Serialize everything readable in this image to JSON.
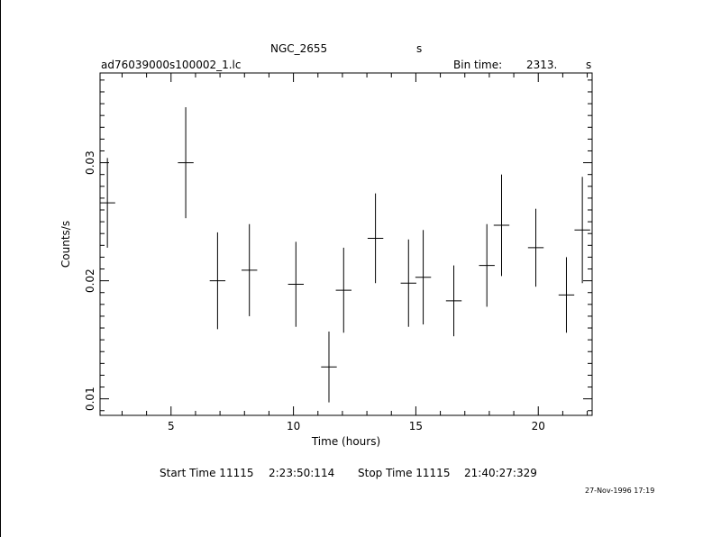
{
  "header": {
    "object": "NGC_2655",
    "object_unit": "s",
    "filename": "ad76039000s100002_1.lc",
    "bin_label": "Bin time:",
    "bin_value": "2313.",
    "bin_unit": "s"
  },
  "footer": {
    "start_label": "Start Time 11115",
    "start_value": "2:23:50:114",
    "stop_label": "Stop Time 11115",
    "stop_value": "21:40:27:329",
    "timestamp": "27-Nov-1996 17:19"
  },
  "chart_data": {
    "type": "scatter",
    "xlabel": "Time (hours)",
    "ylabel": "Counts/s",
    "xlim": [
      2.1,
      22.2
    ],
    "ylim": [
      0.0086,
      0.0376
    ],
    "x_ticks": [
      5,
      10,
      15,
      20
    ],
    "x_tick_labels": [
      "5",
      "10",
      "15",
      "20"
    ],
    "y_ticks": [
      0.01,
      0.02,
      0.03
    ],
    "y_tick_labels": [
      "0.01",
      "0.02",
      "0.03"
    ],
    "grid": false,
    "points": [
      {
        "x": 2.4,
        "y": 0.0266,
        "xerr": 0.32,
        "yerr": 0.0038
      },
      {
        "x": 5.6,
        "y": 0.03,
        "xerr": 0.32,
        "yerr": 0.0047
      },
      {
        "x": 6.9,
        "y": 0.02,
        "xerr": 0.32,
        "yerr": 0.0041
      },
      {
        "x": 8.2,
        "y": 0.0209,
        "xerr": 0.32,
        "yerr": 0.0039
      },
      {
        "x": 10.1,
        "y": 0.0197,
        "xerr": 0.32,
        "yerr": 0.0036
      },
      {
        "x": 11.45,
        "y": 0.0127,
        "xerr": 0.32,
        "yerr": 0.003
      },
      {
        "x": 12.05,
        "y": 0.0192,
        "xerr": 0.32,
        "yerr": 0.0036
      },
      {
        "x": 13.35,
        "y": 0.0236,
        "xerr": 0.32,
        "yerr": 0.0038
      },
      {
        "x": 14.7,
        "y": 0.0198,
        "xerr": 0.32,
        "yerr": 0.0037
      },
      {
        "x": 15.3,
        "y": 0.0203,
        "xerr": 0.32,
        "yerr": 0.004
      },
      {
        "x": 16.55,
        "y": 0.0183,
        "xerr": 0.32,
        "yerr": 0.003
      },
      {
        "x": 17.9,
        "y": 0.0213,
        "xerr": 0.32,
        "yerr": 0.0035
      },
      {
        "x": 18.5,
        "y": 0.0247,
        "xerr": 0.32,
        "yerr": 0.0043
      },
      {
        "x": 19.9,
        "y": 0.0228,
        "xerr": 0.32,
        "yerr": 0.0033
      },
      {
        "x": 21.15,
        "y": 0.0188,
        "xerr": 0.32,
        "yerr": 0.0032
      },
      {
        "x": 21.8,
        "y": 0.0243,
        "xerr": 0.32,
        "yerr": 0.0045
      }
    ]
  }
}
